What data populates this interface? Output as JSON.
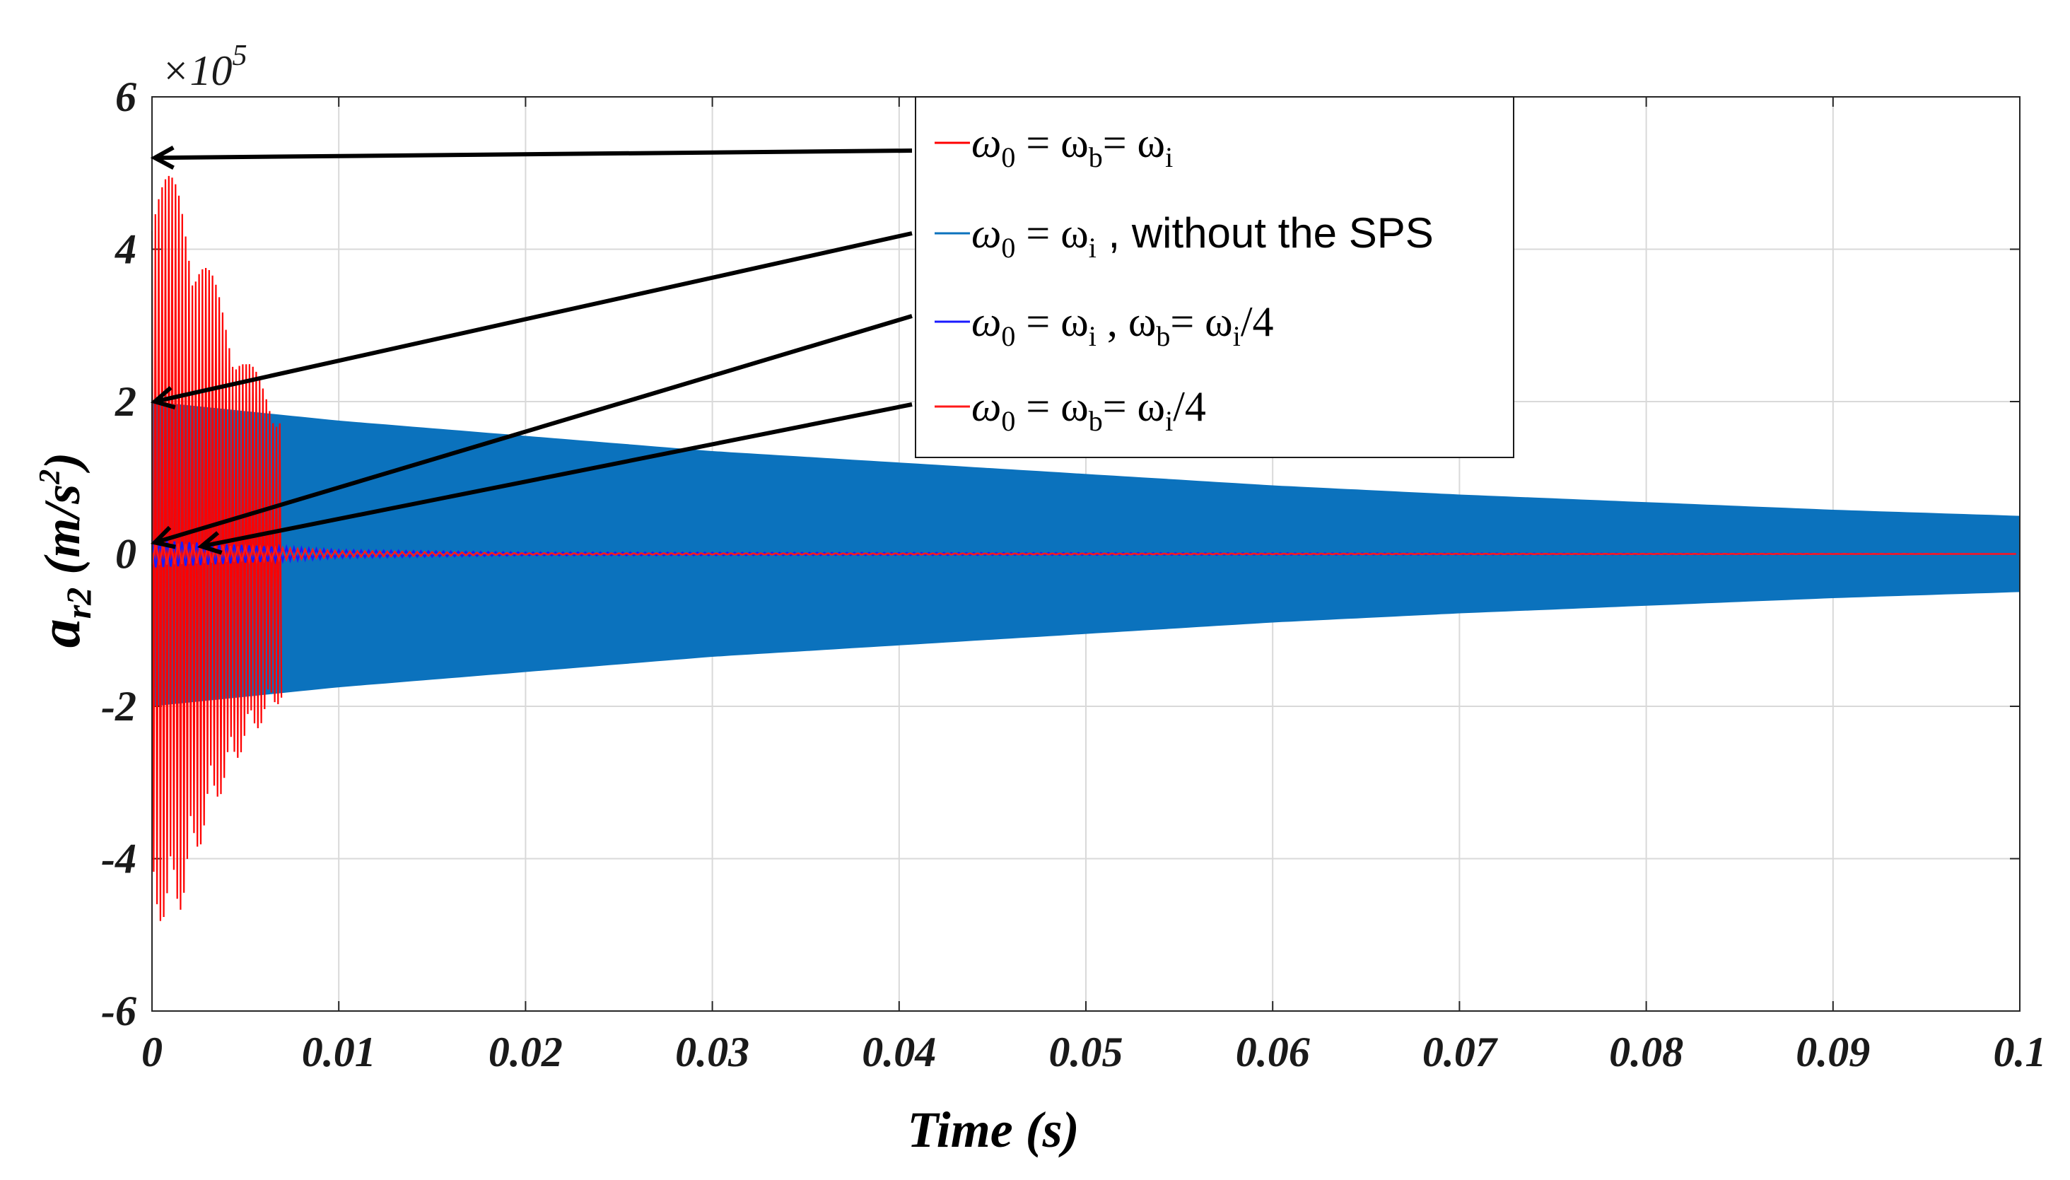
{
  "chart_data": {
    "type": "line",
    "xlabel": "Time (s)",
    "ylabel_parts": {
      "symbol": "a",
      "subscript": "r2",
      "unit_prefix": " (m/s",
      "unit_power": "2",
      "unit_suffix": ")"
    },
    "y_exponent": {
      "base": "×10",
      "power": "5"
    },
    "xlim": [
      0,
      0.1
    ],
    "ylim": [
      -6,
      6
    ],
    "x_ticks": [
      "0",
      "0.01",
      "0.02",
      "0.03",
      "0.04",
      "0.05",
      "0.06",
      "0.07",
      "0.08",
      "0.09",
      "0.1"
    ],
    "y_ticks": [
      "6",
      "4",
      "2",
      "0",
      "-2",
      "-4",
      "-6"
    ],
    "grid": true,
    "legend_position": "top-right",
    "series": [
      {
        "legend": {
          "pre": "ω",
          "s1": "0",
          "mid1": " = ω",
          "s2": "b",
          "mid2": "= ω",
          "s3": "i",
          "tail": ""
        },
        "color": "#ff0000",
        "kind": "decaying-oscillation",
        "peak_envelope": [
          [
            0,
            5.3
          ],
          [
            0.0015,
            4.8
          ],
          [
            0.003,
            3.8
          ],
          [
            0.005,
            2.6
          ],
          [
            0.007,
            1.9
          ]
        ],
        "trough_envelope": [
          [
            0,
            -4.9
          ],
          [
            0.0015,
            -4.7
          ],
          [
            0.003,
            -3.5
          ],
          [
            0.005,
            -2.5
          ],
          [
            0.007,
            -1.9
          ]
        ],
        "arrow_target": [
          0,
          5.2
        ]
      },
      {
        "legend": {
          "pre": "ω",
          "s1": "0",
          "mid1": " = ω",
          "s2": "i",
          "mid2": " , without the SPS",
          "s3": "",
          "tail": ""
        },
        "color": "#0b72bd",
        "kind": "filled-envelope",
        "upper_envelope": [
          [
            0,
            2.0
          ],
          [
            0.01,
            1.75
          ],
          [
            0.02,
            1.55
          ],
          [
            0.03,
            1.35
          ],
          [
            0.04,
            1.2
          ],
          [
            0.05,
            1.05
          ],
          [
            0.06,
            0.9
          ],
          [
            0.07,
            0.78
          ],
          [
            0.08,
            0.68
          ],
          [
            0.09,
            0.58
          ],
          [
            0.1,
            0.5
          ]
        ],
        "lower_envelope": [
          [
            0,
            -2.0
          ],
          [
            0.01,
            -1.75
          ],
          [
            0.02,
            -1.55
          ],
          [
            0.03,
            -1.35
          ],
          [
            0.04,
            -1.2
          ],
          [
            0.05,
            -1.05
          ],
          [
            0.06,
            -0.9
          ],
          [
            0.07,
            -0.78
          ],
          [
            0.08,
            -0.68
          ],
          [
            0.09,
            -0.58
          ],
          [
            0.1,
            -0.5
          ]
        ],
        "arrow_target": [
          0,
          2.0
        ]
      },
      {
        "legend": {
          "pre": "ω",
          "s1": "0",
          "mid1": " = ω",
          "s2": "i",
          "mid2": " , ω",
          "s3": "b",
          "tail": "= ω",
          "s4": "i",
          "end": "/4"
        },
        "color": "#1a1aff",
        "kind": "small-oscillation",
        "amplitude": [
          [
            0,
            0.18
          ],
          [
            0.01,
            0.05
          ],
          [
            0.02,
            0.02
          ],
          [
            0.1,
            0.0
          ]
        ],
        "arrow_target": [
          0,
          0.15
        ]
      },
      {
        "legend": {
          "pre": "ω",
          "s1": "0",
          "mid1": " = ω",
          "s2": "b",
          "mid2": "= ω",
          "s3": "i",
          "tail": "/4"
        },
        "color": "#ff1a1a",
        "kind": "small-oscillation",
        "amplitude": [
          [
            0,
            0.15
          ],
          [
            0.01,
            0.04
          ],
          [
            0.02,
            0.01
          ],
          [
            0.1,
            0.0
          ]
        ],
        "arrow_target": [
          0.0025,
          0.1
        ]
      }
    ]
  }
}
